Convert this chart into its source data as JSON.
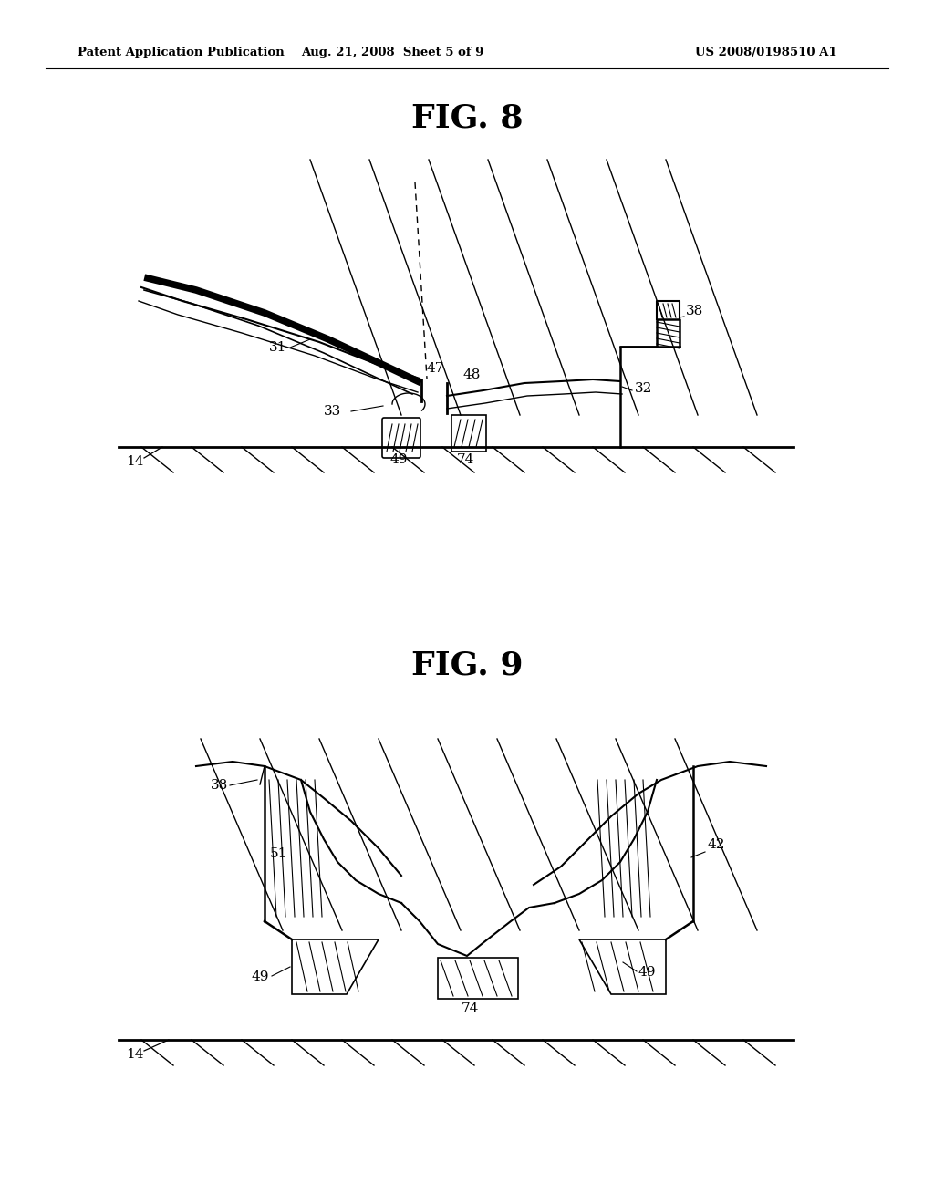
{
  "page_width": 10.24,
  "page_height": 13.2,
  "background_color": "#ffffff",
  "header_left": "Patent Application Publication",
  "header_center": "Aug. 21, 2008  Sheet 5 of 9",
  "header_right": "US 2008/0198510 A1",
  "fig8_title": "FIG. 8",
  "fig9_title": "FIG. 9",
  "line_color": "#000000",
  "text_color": "#000000"
}
